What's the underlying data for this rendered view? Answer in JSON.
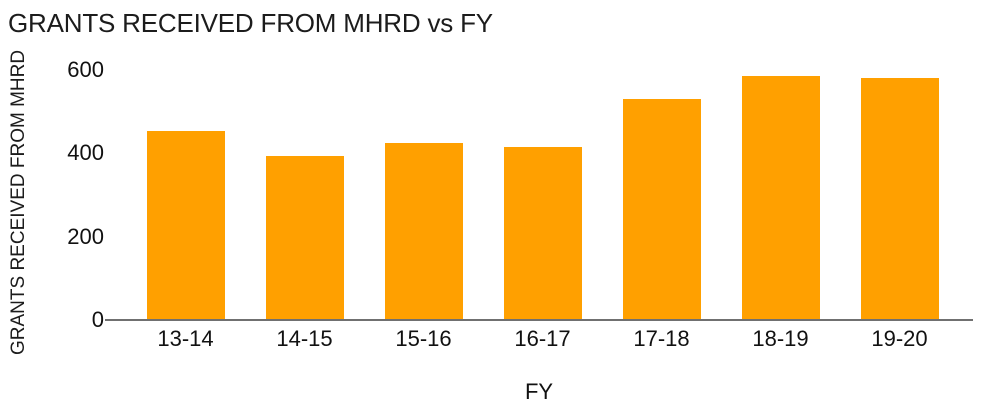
{
  "chart_data": {
    "type": "bar",
    "title": "GRANTS RECEIVED FROM MHRD vs FY",
    "xlabel": "FY",
    "ylabel": "GRANTS RECEIVED FROM MHRD",
    "categories": [
      "13-14",
      "14-15",
      "15-16",
      "16-17",
      "17-18",
      "18-19",
      "19-20"
    ],
    "values": [
      450,
      390,
      422,
      413,
      527,
      583,
      578
    ],
    "ylim": [
      0,
      600
    ],
    "yticks": [
      0,
      200,
      400,
      600
    ],
    "grid": false,
    "legend_position": "none",
    "bar_color": "#FFA000",
    "axis_line_color": "#707070",
    "text_color": "#1c1c1c",
    "background_color": "#FFFFFF"
  }
}
